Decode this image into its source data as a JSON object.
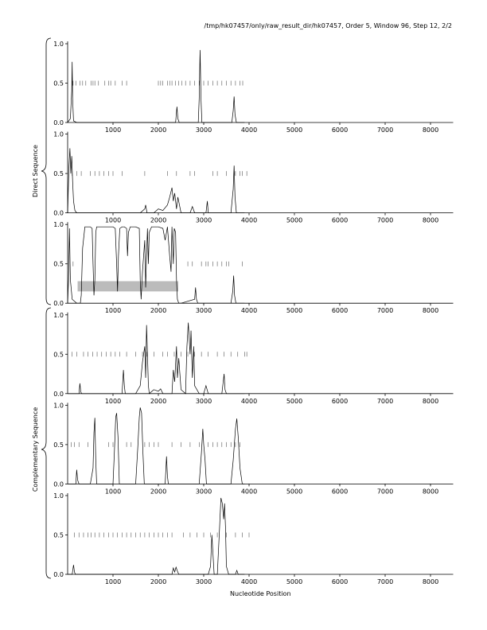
{
  "header": "/tmp/hk07457/only/raw_result_dir/hk07457, Order 5, Window 96, Step 12, 2/2",
  "chart_data": [
    {
      "type": "line",
      "color": "#000000",
      "xlim": [
        0,
        8500
      ],
      "xticks": [
        1000,
        2000,
        3000,
        4000,
        5000,
        6000,
        7000,
        8000
      ],
      "ylim": [
        0,
        1
      ],
      "yticks": [
        {
          "value": 0,
          "label": "0.0"
        },
        0.5,
        {
          "value": 1,
          "label": "1.0"
        }
      ],
      "x": [
        0,
        60,
        90,
        100,
        110,
        130,
        200,
        2380,
        2410,
        2430,
        2460,
        2880,
        2900,
        2920,
        2940,
        2960,
        3620,
        3650,
        3670,
        3690,
        3720,
        3900
      ],
      "values": [
        0,
        0.05,
        0.4,
        0.77,
        0.3,
        0.02,
        0,
        0,
        0.2,
        0.05,
        0,
        0,
        0.3,
        0.92,
        0.3,
        0,
        0,
        0.15,
        0.33,
        0.1,
        0,
        0
      ],
      "markers": [
        120,
        180,
        270,
        330,
        400,
        520,
        560,
        600,
        680,
        820,
        900,
        950,
        1050,
        1200,
        1300,
        2000,
        2050,
        2100,
        2200,
        2250,
        2300,
        2380,
        2450,
        2520,
        2600,
        2700,
        2800,
        2900,
        3000,
        3100,
        3200,
        3300,
        3400,
        3500,
        3600,
        3700,
        3800,
        3860
      ]
    },
    {
      "type": "line",
      "color": "#000000",
      "ylabel": "Direct Sequence",
      "xlim": [
        0,
        8500
      ],
      "xticks": [
        1000,
        2000,
        3000,
        4000,
        5000,
        6000,
        7000,
        8000
      ],
      "ylim": [
        0,
        1
      ],
      "yticks": [
        {
          "value": 0,
          "label": "0.0"
        },
        0.5,
        {
          "value": 1,
          "label": "1.0"
        }
      ],
      "x": [
        0,
        30,
        50,
        70,
        90,
        110,
        130,
        160,
        200,
        1600,
        1700,
        1720,
        1750,
        1900,
        2000,
        2100,
        2200,
        2250,
        2300,
        2330,
        2360,
        2400,
        2430,
        2500,
        2700,
        2750,
        2800,
        3050,
        3080,
        3100,
        3600,
        3650,
        3670,
        3690,
        3720,
        3900
      ],
      "values": [
        0,
        0.6,
        0.82,
        0.5,
        0.72,
        0.4,
        0.15,
        0.03,
        0,
        0,
        0.05,
        0.1,
        0,
        0,
        0.05,
        0.03,
        0.1,
        0.2,
        0.32,
        0.15,
        0.25,
        0.05,
        0.2,
        0,
        0,
        0.08,
        0,
        0,
        0.15,
        0,
        0,
        0.3,
        0.6,
        0.2,
        0,
        0
      ],
      "markers": [
        100,
        200,
        300,
        500,
        600,
        700,
        800,
        900,
        1000,
        1200,
        1700,
        2200,
        2400,
        2700,
        2800,
        3200,
        3300,
        3500,
        3700,
        3800,
        3850,
        3950
      ]
    },
    {
      "type": "line",
      "color": "#000000",
      "xlim": [
        0,
        8500
      ],
      "xticks": [
        1000,
        2000,
        3000,
        4000,
        5000,
        6000,
        7000,
        8000
      ],
      "ylim": [
        0,
        1
      ],
      "yticks": [
        {
          "value": 0,
          "label": "0.0"
        },
        0.5,
        {
          "value": 1,
          "label": "1.0"
        }
      ],
      "highlight": {
        "x": [
          220,
          2440
        ],
        "y": [
          0.15,
          0.28
        ],
        "color": "#bbbbbb"
      },
      "x": [
        0,
        20,
        40,
        60,
        100,
        200,
        280,
        300,
        330,
        380,
        500,
        540,
        560,
        580,
        600,
        620,
        640,
        680,
        1000,
        1050,
        1080,
        1100,
        1120,
        1150,
        1200,
        1250,
        1300,
        1320,
        1340,
        1380,
        1500,
        1580,
        1600,
        1620,
        1650,
        1700,
        1720,
        1740,
        1760,
        1780,
        1800,
        1850,
        1900,
        2000,
        2100,
        2150,
        2200,
        2250,
        2280,
        2300,
        2330,
        2350,
        2380,
        2400,
        2420,
        2450,
        2500,
        2800,
        2820,
        2840,
        2870,
        3600,
        3640,
        3660,
        3680,
        3710,
        3900
      ],
      "values": [
        0,
        0.3,
        0.95,
        0.3,
        0.05,
        0,
        0,
        0.1,
        0.7,
        0.97,
        0.97,
        0.95,
        0.5,
        0.1,
        0.3,
        0.9,
        0.97,
        0.97,
        0.97,
        0.95,
        0.5,
        0.15,
        0.6,
        0.95,
        0.97,
        0.97,
        0.95,
        0.6,
        0.9,
        0.97,
        0.97,
        0.95,
        0.3,
        0.05,
        0.4,
        0.8,
        0.2,
        0.6,
        0.95,
        0.5,
        0.9,
        0.97,
        0.97,
        0.97,
        0.95,
        0.8,
        0.97,
        0.6,
        0.4,
        0.97,
        0.5,
        0.95,
        0.9,
        0.3,
        0.05,
        0,
        0,
        0.05,
        0.2,
        0.05,
        0,
        0,
        0.15,
        0.35,
        0.1,
        0,
        0
      ],
      "markers": [
        120,
        2650,
        2750,
        2950,
        3050,
        3100,
        3200,
        3300,
        3400,
        3500,
        3550,
        3850
      ]
    },
    {
      "type": "line",
      "color": "#000000",
      "xlim": [
        0,
        8500
      ],
      "xticks": [
        1000,
        2000,
        3000,
        4000,
        5000,
        6000,
        7000,
        8000
      ],
      "ylim": [
        0,
        1
      ],
      "yticks": [
        {
          "value": 0,
          "label": "0.0"
        },
        0.5,
        {
          "value": 1,
          "label": "1.0"
        }
      ],
      "x": [
        0,
        250,
        270,
        290,
        310,
        1200,
        1230,
        1250,
        1270,
        1500,
        1600,
        1650,
        1700,
        1720,
        1740,
        1760,
        1780,
        1800,
        1900,
        2000,
        2050,
        2100,
        2300,
        2330,
        2360,
        2400,
        2420,
        2450,
        2500,
        2600,
        2630,
        2660,
        2700,
        2720,
        2750,
        2780,
        2800,
        2900,
        3000,
        3050,
        3100,
        3400,
        3450,
        3470,
        3500,
        3900
      ],
      "values": [
        0,
        0,
        0.13,
        0.02,
        0,
        0,
        0.3,
        0.1,
        0,
        0,
        0.1,
        0.4,
        0.6,
        0.2,
        0.87,
        0.5,
        0.1,
        0,
        0.05,
        0.03,
        0.06,
        0,
        0,
        0.3,
        0.15,
        0.6,
        0.2,
        0.45,
        0.05,
        0,
        0.6,
        0.9,
        0.5,
        0.8,
        0.2,
        0.6,
        0.1,
        0,
        0,
        0.1,
        0,
        0,
        0.25,
        0.05,
        0,
        0
      ],
      "markers": [
        100,
        200,
        350,
        450,
        550,
        650,
        750,
        850,
        950,
        1050,
        1150,
        1300,
        1500,
        1650,
        1750,
        1900,
        2100,
        2200,
        2350,
        2500,
        2650,
        2800,
        2950,
        3100,
        3300,
        3450,
        3600,
        3750,
        3900,
        3950
      ]
    },
    {
      "type": "line",
      "color": "#000000",
      "ylabel": "Complementary Sequence",
      "xlim": [
        0,
        8500
      ],
      "xticks": [
        1000,
        2000,
        3000,
        4000,
        5000,
        6000,
        7000,
        8000
      ],
      "ylim": [
        0,
        1
      ],
      "yticks": [
        {
          "value": 0,
          "label": "0.0"
        },
        0.5,
        {
          "value": 1,
          "label": "1.0"
        }
      ],
      "x": [
        0,
        180,
        200,
        220,
        250,
        500,
        560,
        580,
        600,
        620,
        640,
        1000,
        1030,
        1060,
        1080,
        1110,
        1140,
        1500,
        1550,
        1580,
        1600,
        1630,
        1660,
        1690,
        2150,
        2180,
        2200,
        2220,
        2900,
        2950,
        2980,
        3000,
        3030,
        3060,
        3600,
        3650,
        3700,
        3730,
        3760,
        3800,
        3850,
        3900
      ],
      "values": [
        0,
        0,
        0.18,
        0.05,
        0,
        0,
        0.2,
        0.65,
        0.84,
        0.3,
        0,
        0,
        0.4,
        0.85,
        0.9,
        0.6,
        0,
        0,
        0.5,
        0.85,
        0.97,
        0.9,
        0.4,
        0,
        0,
        0.35,
        0.1,
        0,
        0,
        0.4,
        0.7,
        0.5,
        0.3,
        0,
        0,
        0.3,
        0.7,
        0.83,
        0.6,
        0.2,
        0,
        0
      ],
      "markers": [
        80,
        150,
        250,
        450,
        900,
        1000,
        1300,
        1400,
        1700,
        1800,
        1900,
        2000,
        2300,
        2500,
        2700,
        2900,
        3100,
        3200,
        3300,
        3400,
        3500,
        3600,
        3700,
        3800
      ]
    },
    {
      "type": "line",
      "color": "#000000",
      "xlabel": "Nucleotide Position",
      "xlim": [
        0,
        8500
      ],
      "xticks": [
        1000,
        2000,
        3000,
        4000,
        5000,
        6000,
        7000,
        8000
      ],
      "ylim": [
        0,
        1
      ],
      "yticks": [
        {
          "value": 0,
          "label": "0.0"
        },
        0.5,
        {
          "value": 1,
          "label": "1.0"
        }
      ],
      "x": [
        0,
        100,
        130,
        150,
        170,
        2300,
        2330,
        2360,
        2390,
        2420,
        2450,
        3100,
        3150,
        3180,
        3200,
        3230,
        3300,
        3350,
        3380,
        3410,
        3440,
        3460,
        3480,
        3500,
        3550,
        3700,
        3730,
        3760,
        3900
      ],
      "values": [
        0,
        0,
        0.12,
        0.03,
        0,
        0,
        0.08,
        0.03,
        0.09,
        0.04,
        0,
        0,
        0.1,
        0.5,
        0.3,
        0,
        0,
        0.6,
        0.97,
        0.9,
        0.7,
        0.9,
        0.6,
        0.1,
        0,
        0,
        0.05,
        0,
        0
      ],
      "markers": [
        150,
        250,
        350,
        450,
        520,
        600,
        700,
        800,
        900,
        1000,
        1100,
        1200,
        1300,
        1400,
        1500,
        1600,
        1700,
        1800,
        1900,
        2000,
        2100,
        2200,
        2300,
        2550,
        2700,
        2850,
        3000,
        3150,
        3300,
        3500,
        3700,
        3850,
        4000
      ]
    }
  ]
}
